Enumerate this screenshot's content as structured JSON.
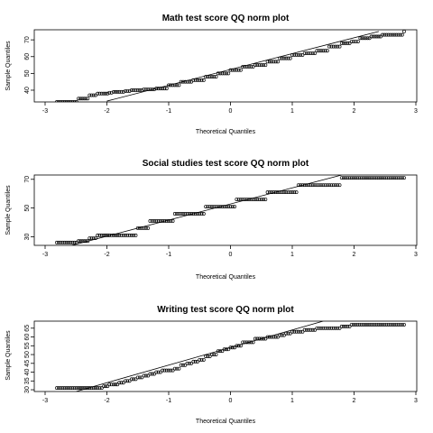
{
  "chart_data": [
    {
      "type": "scatter",
      "title": "Math test score QQ norm plot",
      "xlabel": "Theoretical Quantiles",
      "ylabel": "Sample Quantiles",
      "xlim": [
        -3,
        3
      ],
      "ylim": [
        33,
        76
      ],
      "xticks": [
        "-3",
        "-2",
        "-1",
        "0",
        "1",
        "2",
        "3"
      ],
      "yticks": [
        "40",
        "50",
        "60",
        "70"
      ],
      "grid": false,
      "reference_line": {
        "x": [
          -2.0,
          2.4
        ],
        "y": [
          33.5,
          75.0
        ]
      },
      "points": {
        "x": [
          -2.81,
          -2.46,
          -2.28,
          -2.15,
          -2.05,
          -1.96,
          -1.89,
          -1.8,
          -1.7,
          -1.6,
          -1.5,
          -1.4,
          -1.2,
          -1.0,
          -0.8,
          -0.6,
          -0.4,
          -0.2,
          0.0,
          0.2,
          0.4,
          0.6,
          0.8,
          1.0,
          1.2,
          1.4,
          1.6,
          1.8,
          1.96,
          2.1,
          2.28,
          2.46,
          2.81
        ],
        "y": [
          33,
          35,
          37,
          38,
          38,
          38.5,
          39,
          39,
          39.5,
          40,
          40,
          40.5,
          41,
          43,
          45,
          46,
          48,
          50,
          52,
          54,
          55,
          57,
          59,
          61,
          62,
          63.5,
          66,
          68,
          69,
          71,
          72,
          73,
          75
        ]
      }
    },
    {
      "type": "scatter",
      "title": "Social studies test score QQ norm plot",
      "xlabel": "Theoretical Quantiles",
      "ylabel": "Sample Quantiles",
      "xlim": [
        -3,
        3
      ],
      "ylim": [
        24,
        73
      ],
      "xticks": [
        "-3",
        "-2",
        "-1",
        "0",
        "1",
        "2",
        "3"
      ],
      "yticks": [
        "30",
        "50",
        "70"
      ],
      "grid": false,
      "reference_line": {
        "x": [
          -2.57,
          1.8
        ],
        "y": [
          24.0,
          73.0
        ]
      },
      "points": {
        "x": [
          -2.81,
          -2.46,
          -2.28,
          -2.15,
          -2.05,
          -1.96,
          -1.89,
          -1.8,
          -1.7,
          -1.6,
          -1.5,
          -1.4,
          -1.3,
          -1.2,
          -1.1,
          -1.0,
          -0.9,
          -0.8,
          -0.7,
          -0.6,
          -0.5,
          -0.4,
          -0.3,
          -0.2,
          -0.1,
          0.0,
          0.1,
          0.2,
          0.3,
          0.4,
          0.5,
          0.6,
          0.7,
          0.8,
          0.9,
          1.0,
          1.1,
          1.2,
          1.3,
          1.4,
          1.5,
          1.6,
          1.7,
          1.8,
          1.96,
          2.15,
          2.46,
          2.81
        ],
        "y": [
          26,
          27,
          29,
          31,
          31,
          31,
          31,
          31,
          31,
          31,
          36,
          36,
          41,
          41,
          41,
          41,
          46,
          46,
          46,
          46,
          46,
          51,
          51,
          51,
          51,
          51,
          56,
          56,
          56,
          56,
          56,
          61,
          61,
          61,
          61,
          61,
          66,
          66,
          66,
          66,
          66,
          66,
          66,
          71,
          71,
          71,
          71,
          71
        ]
      }
    },
    {
      "type": "scatter",
      "title": "Writing test score QQ norm plot",
      "xlabel": "Theoretical Quantiles",
      "ylabel": "Sample Quantiles",
      "xlim": [
        -3,
        3
      ],
      "ylim": [
        29,
        69
      ],
      "xticks": [
        "-3",
        "-2",
        "-1",
        "0",
        "1",
        "2",
        "3"
      ],
      "yticks": [
        "30",
        "35",
        "40",
        "45",
        "50",
        "55",
        "60",
        "65"
      ],
      "grid": false,
      "reference_line": {
        "x": [
          -2.5,
          1.5
        ],
        "y": [
          29.0,
          69.0
        ]
      },
      "points": {
        "x": [
          -2.81,
          -2.46,
          -2.28,
          -2.15,
          -2.05,
          -1.96,
          -1.89,
          -1.8,
          -1.7,
          -1.6,
          -1.5,
          -1.4,
          -1.3,
          -1.2,
          -1.1,
          -1.0,
          -0.9,
          -0.8,
          -0.7,
          -0.6,
          -0.5,
          -0.4,
          -0.3,
          -0.2,
          -0.1,
          0.0,
          0.1,
          0.2,
          0.3,
          0.4,
          0.5,
          0.6,
          0.7,
          0.8,
          0.9,
          1.0,
          1.2,
          1.4,
          1.6,
          1.8,
          1.96,
          2.15,
          2.46,
          2.81
        ],
        "y": [
          31,
          31,
          31,
          31,
          32,
          33,
          33,
          34,
          35,
          36,
          37,
          38,
          39,
          40,
          41,
          41,
          42,
          44,
          45,
          46,
          47,
          49,
          50,
          52,
          53,
          54,
          55,
          57,
          57,
          59,
          59,
          60,
          60,
          61,
          62,
          63,
          64,
          65,
          65,
          66,
          67,
          67,
          67,
          67
        ]
      }
    }
  ]
}
